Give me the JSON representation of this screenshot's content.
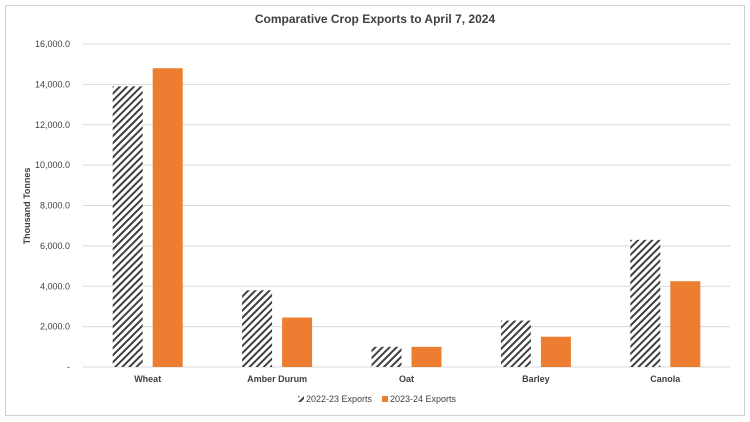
{
  "chart_data": {
    "type": "bar",
    "title": "Comparative Crop Exports to April 7, 2024",
    "xlabel": "",
    "ylabel": "Thousand Tonnes",
    "ylim": [
      0,
      16000
    ],
    "yticks": [
      "-",
      "2,000.0",
      "4,000.0",
      "6,000.0",
      "8,000.0",
      "10,000.0",
      "12,000.0",
      "14,000.0",
      "16,000.0"
    ],
    "grid": true,
    "legend": "bottom",
    "categories": [
      "Wheat",
      "Amber Durum",
      "Oat",
      "Barley",
      "Canola"
    ],
    "series": [
      {
        "name": "2022-23 Exports",
        "values": [
          13900,
          3800,
          1000,
          2300,
          6300
        ],
        "fill": "diagonal-hatch",
        "color": "#404040"
      },
      {
        "name": "2023-24 Exports",
        "values": [
          14800,
          2450,
          1000,
          1500,
          4250
        ],
        "fill": "solid",
        "color": "#ED7D31"
      }
    ]
  }
}
